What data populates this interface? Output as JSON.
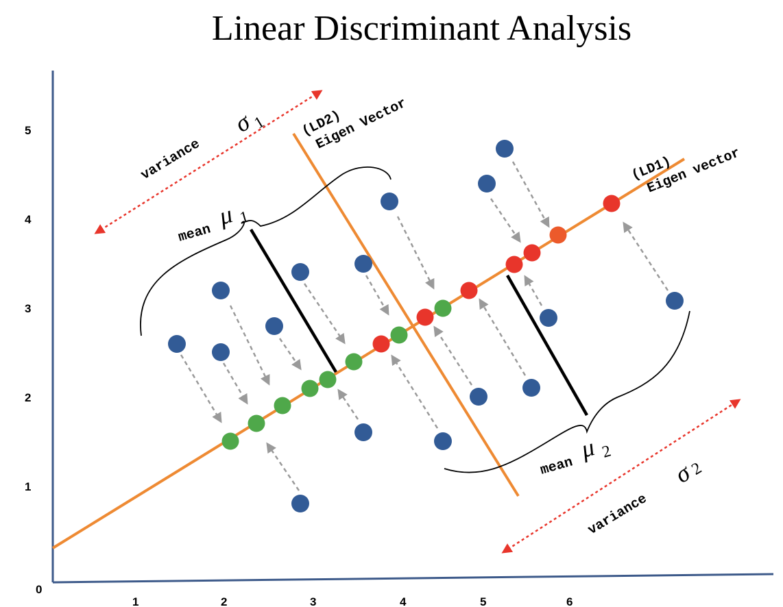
{
  "title": "Linear Discriminant Analysis",
  "axis": {
    "y_ticks": [
      "0",
      "1",
      "2",
      "3",
      "4",
      "5"
    ],
    "x_ticks": [
      "1",
      "2",
      "3",
      "4",
      "5",
      "6"
    ]
  },
  "labels": {
    "ld1": "(LD1)",
    "ld1_name": "Eigen vector",
    "ld2": "(LD2)",
    "ld2_name": "Eigen Vector",
    "variance_1": "variance",
    "sigma_1_symbol": "σ",
    "sigma_1_sub": "1",
    "variance_2": "variance",
    "sigma_2_symbol": "σ",
    "sigma_2_sub": "2",
    "mean_1": "mean",
    "mu_1_symbol": "μ",
    "mu_1_sub": "1",
    "mean_2": "mean",
    "mu_2_symbol": "μ",
    "mu_2_sub": "2"
  },
  "colors": {
    "axis": "#3d5a8a",
    "line": "#ee8a33",
    "blue_point": "#325b96",
    "green_point": "#4fa84a",
    "red_point": "#e8352b",
    "orange_point": "#ec5a2b",
    "projection_arrow": "#9a9a9a",
    "variance_arrow": "#e8352b",
    "mean_line": "#000000"
  }
}
